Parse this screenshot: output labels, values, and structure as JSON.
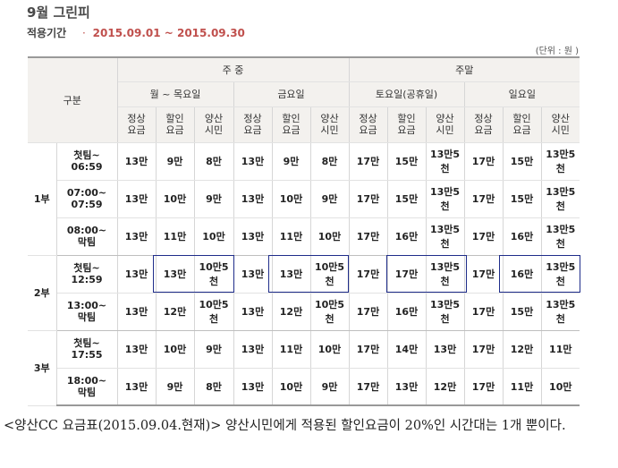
{
  "title": "9월 그린피",
  "period": {
    "label": "적용기간",
    "bullet": "·",
    "value": "2015.09.01 ~ 2015.09.30"
  },
  "unit": "(단위 : 원 )",
  "header": {
    "gubun": "구분",
    "weekday": "주 중",
    "weekend": "주말",
    "mon_thu": "월 ~ 목요일",
    "fri": "금요일",
    "sat": "토요일(공휴일)",
    "sun": "일요일",
    "sub": [
      [
        "정상",
        "요금"
      ],
      [
        "할인",
        "요금"
      ],
      [
        "양산",
        "시민"
      ]
    ]
  },
  "parts": [
    {
      "name": "1부",
      "rows": [
        {
          "time": [
            "첫팀~",
            "06:59"
          ],
          "fees": [
            "13만",
            "9만",
            "8만",
            "13만",
            "9만",
            "8만",
            "17만",
            "15만",
            "13만5천",
            "17만",
            "15만",
            "13만5천"
          ]
        },
        {
          "time": [
            "07:00~",
            "07:59"
          ],
          "fees": [
            "13만",
            "10만",
            "9만",
            "13만",
            "10만",
            "9만",
            "17만",
            "15만",
            "13만5천",
            "17만",
            "15만",
            "13만5천"
          ]
        },
        {
          "time": [
            "08:00~",
            "막팀"
          ],
          "fees": [
            "13만",
            "11만",
            "10만",
            "13만",
            "11만",
            "10만",
            "17만",
            "16만",
            "13만5천",
            "17만",
            "16만",
            "13만5천"
          ]
        }
      ]
    },
    {
      "name": "2부",
      "rows": [
        {
          "time": [
            "첫팀~",
            "12:59"
          ],
          "fees": [
            "13만",
            "13만",
            "10만5천",
            "13만",
            "13만",
            "10만5천",
            "17만",
            "17만",
            "13만5천",
            "17만",
            "16만",
            "13만5천"
          ]
        },
        {
          "time": [
            "13:00~",
            "막팀"
          ],
          "fees": [
            "13만",
            "12만",
            "10만5천",
            "13만",
            "12만",
            "10만5천",
            "17만",
            "16만",
            "13만5천",
            "17만",
            "15만",
            "13만5천"
          ]
        }
      ]
    },
    {
      "name": "3부",
      "rows": [
        {
          "time": [
            "첫팀~",
            "17:55"
          ],
          "fees": [
            "13만",
            "10만",
            "9만",
            "13만",
            "11만",
            "10만",
            "17만",
            "14만",
            "13만",
            "17만",
            "12만",
            "11만"
          ]
        },
        {
          "time": [
            "18:00~",
            "막팀"
          ],
          "fees": [
            "13만",
            "9만",
            "8만",
            "13만",
            "10만",
            "9만",
            "17만",
            "13만",
            "12만",
            "17만",
            "11만",
            "10만"
          ]
        }
      ]
    }
  ],
  "caption": "<양산CC 요금표(2015.09.04.현재)> 양산시민에게 적용된 할인요금이 20%인 시간대는 1개 뿐이다.",
  "colors": {
    "accent": "#c0504d",
    "highlight_border": "#1f2d8a",
    "header_bg": "#f3f1ee"
  }
}
